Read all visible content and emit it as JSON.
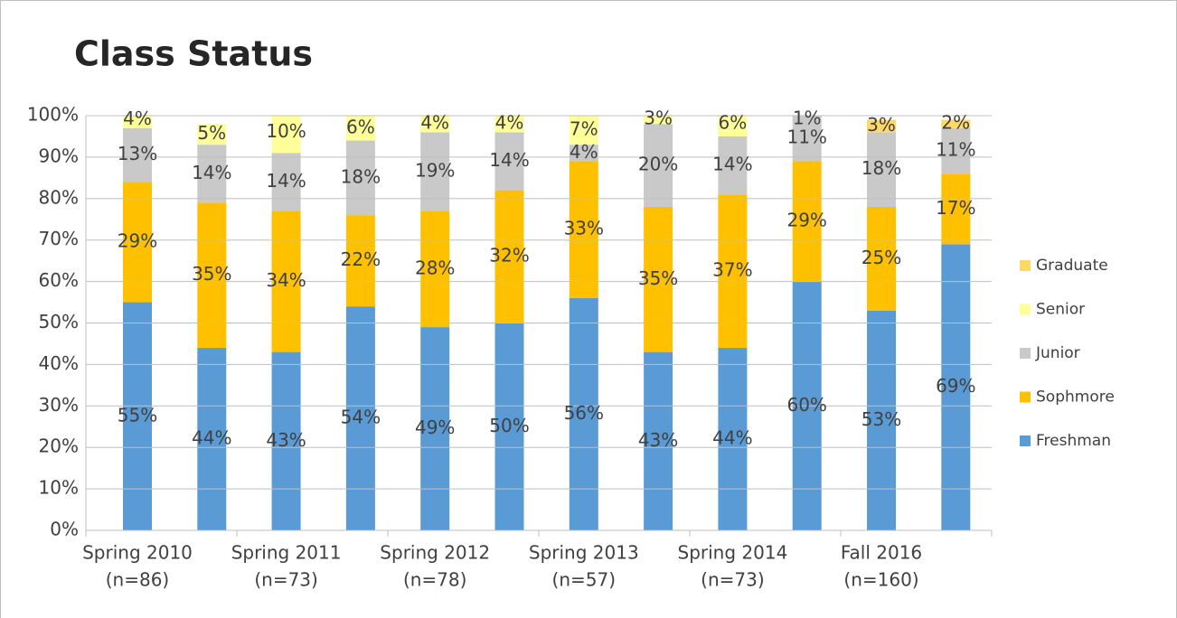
{
  "chart_data": {
    "type": "stacked_bar",
    "title": "Class Status",
    "categories": [
      [
        "Spring 2010",
        "(n=86)"
      ],
      null,
      [
        "Spring 2011",
        "(n=73)"
      ],
      null,
      [
        "Spring 2012",
        "(n=78)"
      ],
      null,
      [
        "Spring 2013",
        "(n=57)"
      ],
      null,
      [
        "Spring 2014",
        "(n=73)"
      ],
      null,
      [
        "Fall 2016",
        "(n=160)"
      ],
      null
    ],
    "series": [
      {
        "name": "Freshman",
        "color": "#5b9bd5",
        "values": [
          55,
          44,
          43,
          54,
          49,
          50,
          56,
          43,
          44,
          60,
          53,
          69
        ],
        "value_labels": [
          "55%",
          "44%",
          "43%",
          "54%",
          "49%",
          "50%",
          "56%",
          "43%",
          "44%",
          "60%",
          "53%",
          "69%"
        ]
      },
      {
        "name": "Sophmore",
        "color": "#ffc000",
        "values": [
          29,
          35,
          34,
          22,
          28,
          32,
          33,
          35,
          37,
          29,
          25,
          17
        ],
        "value_labels": [
          "29%",
          "35%",
          "34%",
          "22%",
          "28%",
          "32%",
          "33%",
          "35%",
          "37%",
          "29%",
          "25%",
          "17%"
        ]
      },
      {
        "name": "Junior",
        "color": "#c9c9c9",
        "values": [
          13,
          14,
          14,
          18,
          19,
          14,
          4,
          20,
          14,
          11,
          18,
          11
        ],
        "value_labels": [
          "13%",
          "14%",
          "14%",
          "18%",
          "19%",
          "14%",
          "4%",
          "20%",
          "14%",
          "11%",
          "18%",
          "11%"
        ]
      },
      {
        "name": "Senior",
        "color": "#ffff99",
        "values": [
          4,
          5,
          10,
          6,
          4,
          4,
          7,
          3,
          6,
          1,
          null,
          null
        ],
        "value_labels": [
          "4%",
          "5%",
          "10%",
          "6%",
          "4%",
          "4%",
          "7%",
          "3%",
          "6%",
          "1%",
          null,
          null
        ]
      },
      {
        "name": "Graduate",
        "color": "#ffd966",
        "values": [
          null,
          null,
          null,
          null,
          null,
          null,
          null,
          null,
          null,
          null,
          3,
          2
        ],
        "value_labels": [
          null,
          null,
          null,
          null,
          null,
          null,
          null,
          null,
          null,
          null,
          "3%",
          "2%"
        ]
      }
    ],
    "ylim": [
      0,
      100
    ],
    "yticks": [
      {
        "value": 0,
        "label": "0%"
      },
      {
        "value": 10,
        "label": "10%"
      },
      {
        "value": 20,
        "label": "20%"
      },
      {
        "value": 30,
        "label": "30%"
      },
      {
        "value": 40,
        "label": "40%"
      },
      {
        "value": 50,
        "label": "50%"
      },
      {
        "value": 60,
        "label": "60%"
      },
      {
        "value": 70,
        "label": "70%"
      },
      {
        "value": 80,
        "label": "80%"
      },
      {
        "value": 90,
        "label": "90%"
      },
      {
        "value": 100,
        "label": "100%"
      }
    ],
    "grid": true,
    "legend": "right"
  }
}
